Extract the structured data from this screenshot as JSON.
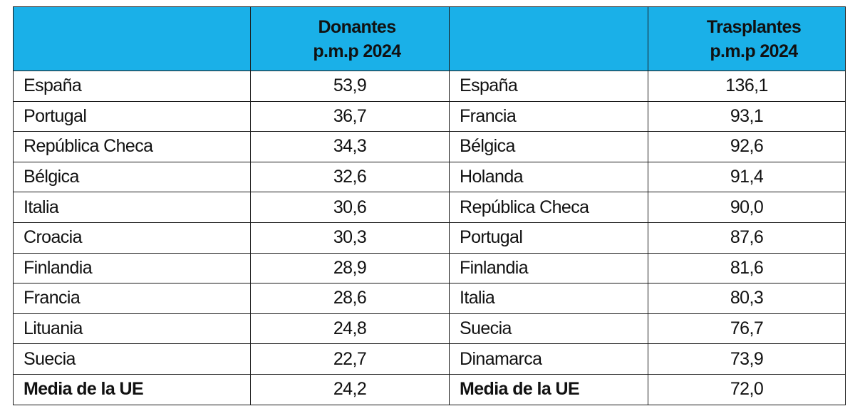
{
  "headers": {
    "donantes": [
      "Donantes",
      "p.m.p 2024"
    ],
    "trasplantes": [
      "Trasplantes",
      "p.m.p 2024"
    ]
  },
  "rows": [
    {
      "donor_country": "España",
      "donor_value": "53,9",
      "transplant_country": "España",
      "transplant_value": "136,1"
    },
    {
      "donor_country": "Portugal",
      "donor_value": "36,7",
      "transplant_country": "Francia",
      "transplant_value": "93,1"
    },
    {
      "donor_country": "República Checa",
      "donor_value": "34,3",
      "transplant_country": "Bélgica",
      "transplant_value": "92,6"
    },
    {
      "donor_country": "Bélgica",
      "donor_value": "32,6",
      "transplant_country": "Holanda",
      "transplant_value": "91,4"
    },
    {
      "donor_country": "Italia",
      "donor_value": "30,6",
      "transplant_country": "República Checa",
      "transplant_value": "90,0"
    },
    {
      "donor_country": "Croacia",
      "donor_value": "30,3",
      "transplant_country": "Portugal",
      "transplant_value": "87,6"
    },
    {
      "donor_country": "Finlandia",
      "donor_value": "28,9",
      "transplant_country": "Finlandia",
      "transplant_value": "81,6"
    },
    {
      "donor_country": "Francia",
      "donor_value": "28,6",
      "transplant_country": "Italia",
      "transplant_value": "80,3"
    },
    {
      "donor_country": "Lituania",
      "donor_value": "24,8",
      "transplant_country": "Suecia",
      "transplant_value": "76,7"
    },
    {
      "donor_country": "Suecia",
      "donor_value": "22,7",
      "transplant_country": "Dinamarca",
      "transplant_value": "73,9"
    }
  ],
  "average": {
    "donor_label": "Media de la UE",
    "donor_value": "24,2",
    "transplant_label": "Media de la UE",
    "transplant_value": "72,0"
  },
  "colors": {
    "header_bg": "#1ab0e8"
  }
}
